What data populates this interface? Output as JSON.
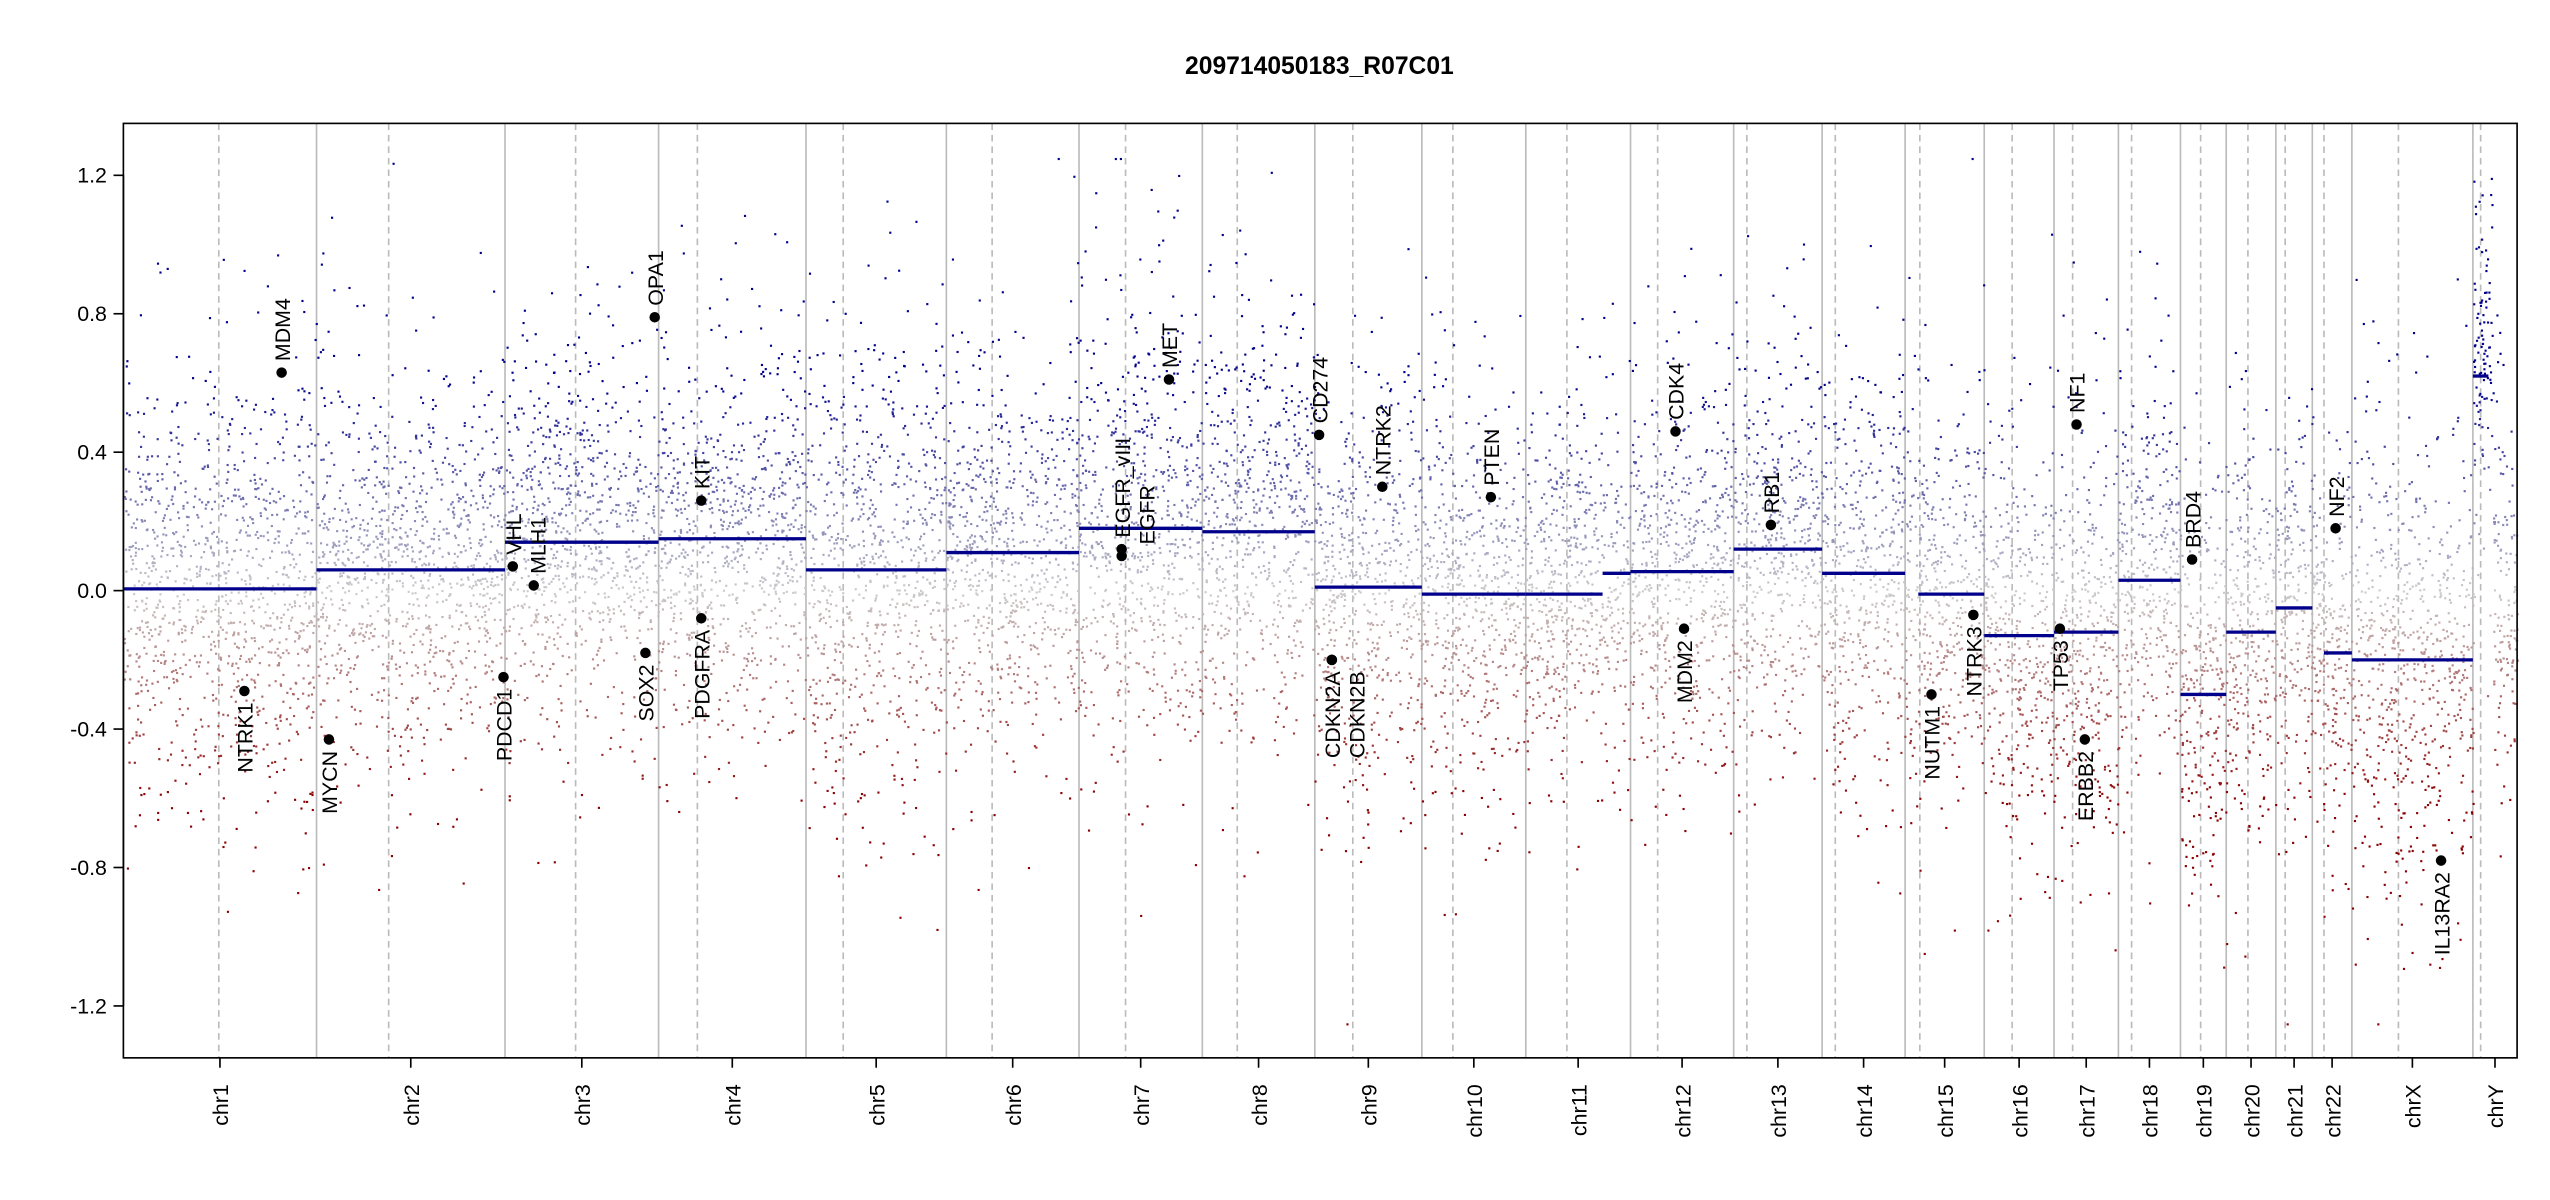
{
  "chart_data": {
    "type": "scatter",
    "title": "209714050183_R07C01",
    "xlabel": "",
    "ylabel": "",
    "ylim": [
      -1.35,
      1.35
    ],
    "yticks": [
      -1.2,
      -0.8,
      -0.4,
      0.0,
      0.4,
      0.8,
      1.2
    ],
    "ytick_labels": [
      "-1.2",
      "-0.8",
      "-0.4",
      "0.0",
      "0.4",
      "0.8",
      "1.2"
    ],
    "x_units": "genomic position (Mb), concatenated chromosomes",
    "colors": {
      "gain": "#00008b",
      "loss": "#8b0000",
      "neutral": "#cccccc",
      "segment": "#00008b",
      "gene": "#000000",
      "boundary": "#bbbbbb"
    },
    "chromosomes": [
      {
        "name": "chr1",
        "length": 249,
        "centromere": 123,
        "spread": 0.34
      },
      {
        "name": "chr2",
        "length": 243,
        "centromere": 93,
        "spread": 0.3
      },
      {
        "name": "chr3",
        "length": 198,
        "centromere": 91,
        "spread": 0.3
      },
      {
        "name": "chr4",
        "length": 190,
        "centromere": 50,
        "spread": 0.3
      },
      {
        "name": "chr5",
        "length": 181,
        "centromere": 48,
        "spread": 0.36
      },
      {
        "name": "chr6",
        "length": 171,
        "centromere": 59,
        "spread": 0.3
      },
      {
        "name": "chr7",
        "length": 159,
        "centromere": 60,
        "spread": 0.36
      },
      {
        "name": "chr8",
        "length": 145,
        "centromere": 45,
        "spread": 0.34
      },
      {
        "name": "chr9",
        "length": 138,
        "centromere": 49,
        "spread": 0.32
      },
      {
        "name": "chr10",
        "length": 134,
        "centromere": 40,
        "spread": 0.3
      },
      {
        "name": "chr11",
        "length": 135,
        "centromere": 53,
        "spread": 0.3
      },
      {
        "name": "chr12",
        "length": 133,
        "centromere": 35,
        "spread": 0.3
      },
      {
        "name": "chr13",
        "length": 114,
        "centromere": 17,
        "spread": 0.3
      },
      {
        "name": "chr14",
        "length": 107,
        "centromere": 17,
        "spread": 0.32
      },
      {
        "name": "chr15",
        "length": 102,
        "centromere": 19,
        "spread": 0.32
      },
      {
        "name": "chr16",
        "length": 90,
        "centromere": 36,
        "spread": 0.32
      },
      {
        "name": "chr17",
        "length": 83,
        "centromere": 24,
        "spread": 0.34
      },
      {
        "name": "chr18",
        "length": 80,
        "centromere": 17,
        "spread": 0.3
      },
      {
        "name": "chr19",
        "length": 59,
        "centromere": 26,
        "spread": 0.34
      },
      {
        "name": "chr20",
        "length": 64,
        "centromere": 28,
        "spread": 0.32
      },
      {
        "name": "chr21",
        "length": 47,
        "centromere": 12,
        "spread": 0.3
      },
      {
        "name": "chr22",
        "length": 51,
        "centromere": 15,
        "spread": 0.32
      },
      {
        "name": "chrX",
        "length": 156,
        "centromere": 60,
        "spread": 0.36
      },
      {
        "name": "chrY",
        "length": 57,
        "centromere": 10,
        "spread": 0.3
      }
    ],
    "segments": [
      {
        "chr": "chr1",
        "start": 0,
        "end": 249,
        "value": 0.005
      },
      {
        "chr": "chr2",
        "start": 0,
        "end": 243,
        "value": 0.06
      },
      {
        "chr": "chr3",
        "start": 0,
        "end": 198,
        "value": 0.14
      },
      {
        "chr": "chr4",
        "start": 0,
        "end": 190,
        "value": 0.15
      },
      {
        "chr": "chr5",
        "start": 0,
        "end": 181,
        "value": 0.06
      },
      {
        "chr": "chr6",
        "start": 0,
        "end": 171,
        "value": 0.11
      },
      {
        "chr": "chr7",
        "start": 0,
        "end": 159,
        "value": 0.18
      },
      {
        "chr": "chr8",
        "start": 0,
        "end": 145,
        "value": 0.17
      },
      {
        "chr": "chr9",
        "start": 0,
        "end": 138,
        "value": 0.01
      },
      {
        "chr": "chr10",
        "start": 0,
        "end": 134,
        "value": -0.01
      },
      {
        "chr": "chr11",
        "start": 0,
        "end": 99,
        "value": -0.01
      },
      {
        "chr": "chr11",
        "start": 99,
        "end": 135,
        "value": 0.05
      },
      {
        "chr": "chr12",
        "start": 0,
        "end": 133,
        "value": 0.055
      },
      {
        "chr": "chr13",
        "start": 0,
        "end": 114,
        "value": 0.12
      },
      {
        "chr": "chr14",
        "start": 0,
        "end": 107,
        "value": 0.05
      },
      {
        "chr": "chr15",
        "start": 17,
        "end": 102,
        "value": -0.01
      },
      {
        "chr": "chr16",
        "start": 0,
        "end": 90,
        "value": -0.13
      },
      {
        "chr": "chr17",
        "start": 0,
        "end": 83,
        "value": -0.12
      },
      {
        "chr": "chr18",
        "start": 0,
        "end": 80,
        "value": 0.03
      },
      {
        "chr": "chr19",
        "start": 0,
        "end": 59,
        "value": -0.3
      },
      {
        "chr": "chr20",
        "start": 0,
        "end": 64,
        "value": -0.12
      },
      {
        "chr": "chr21",
        "start": 0,
        "end": 47,
        "value": -0.05
      },
      {
        "chr": "chr22",
        "start": 15,
        "end": 51,
        "value": -0.18
      },
      {
        "chr": "chrX",
        "start": 0,
        "end": 156,
        "value": -0.2
      },
      {
        "chr": "chrY",
        "start": 0,
        "end": 20,
        "value": 0.62
      }
    ],
    "genes": [
      {
        "name": "NTRK1",
        "chr": "chr1",
        "pos": 156,
        "value": -0.29
      },
      {
        "name": "MDM4",
        "chr": "chr1",
        "pos": 204,
        "value": 0.63
      },
      {
        "name": "MYCN",
        "chr": "chr2",
        "pos": 16,
        "value": -0.43
      },
      {
        "name": "PDCD1",
        "chr": "chr2",
        "pos": 241,
        "value": -0.25
      },
      {
        "name": "VHL",
        "chr": "chr3",
        "pos": 10,
        "value": 0.07
      },
      {
        "name": "MLH1",
        "chr": "chr3",
        "pos": 37,
        "value": 0.015
      },
      {
        "name": "SOX2",
        "chr": "chr3",
        "pos": 181,
        "value": -0.18
      },
      {
        "name": "OPA1",
        "chr": "chr3",
        "pos": 193,
        "value": 0.79
      },
      {
        "name": "KIT",
        "chr": "chr4",
        "pos": 55,
        "value": 0.26
      },
      {
        "name": "PDGFRA",
        "chr": "chr4",
        "pos": 55,
        "value": -0.08
      },
      {
        "name": "EGFR_vIII",
        "chr": "chr7",
        "pos": 55,
        "value": 0.12
      },
      {
        "name": "EGFR",
        "chr": "chr7",
        "pos": 55,
        "value": 0.1
      },
      {
        "name": "MET",
        "chr": "chr7",
        "pos": 116,
        "value": 0.61
      },
      {
        "name": "CD274",
        "chr": "chr9",
        "pos": 5.5,
        "value": 0.45
      },
      {
        "name": "CDKN2A",
        "chr": "chr9",
        "pos": 21.9,
        "value": -0.2
      },
      {
        "name": "CDKN2B",
        "chr": "chr9",
        "pos": 22.0,
        "value": -0.2
      },
      {
        "name": "NTRK2",
        "chr": "chr9",
        "pos": 87,
        "value": 0.3
      },
      {
        "name": "PTEN",
        "chr": "chr10",
        "pos": 89,
        "value": 0.27
      },
      {
        "name": "CDK4",
        "chr": "chr12",
        "pos": 58,
        "value": 0.46
      },
      {
        "name": "MDM2",
        "chr": "chr12",
        "pos": 69,
        "value": -0.11
      },
      {
        "name": "RB1",
        "chr": "chr13",
        "pos": 48,
        "value": 0.19
      },
      {
        "name": "NUTM1",
        "chr": "chr15",
        "pos": 34,
        "value": -0.3
      },
      {
        "name": "NTRK3",
        "chr": "chr15",
        "pos": 88,
        "value": -0.07
      },
      {
        "name": "TP53",
        "chr": "chr17",
        "pos": 7.6,
        "value": -0.11
      },
      {
        "name": "NF1",
        "chr": "chr17",
        "pos": 29,
        "value": 0.48
      },
      {
        "name": "ERBB2",
        "chr": "chr17",
        "pos": 39.7,
        "value": -0.43
      },
      {
        "name": "BRD4",
        "chr": "chr19",
        "pos": 15,
        "value": 0.09
      },
      {
        "name": "NF2",
        "chr": "chr22",
        "pos": 30,
        "value": 0.18
      },
      {
        "name": "IL13RA2",
        "chr": "chrX",
        "pos": 115,
        "value": -0.78
      }
    ]
  }
}
